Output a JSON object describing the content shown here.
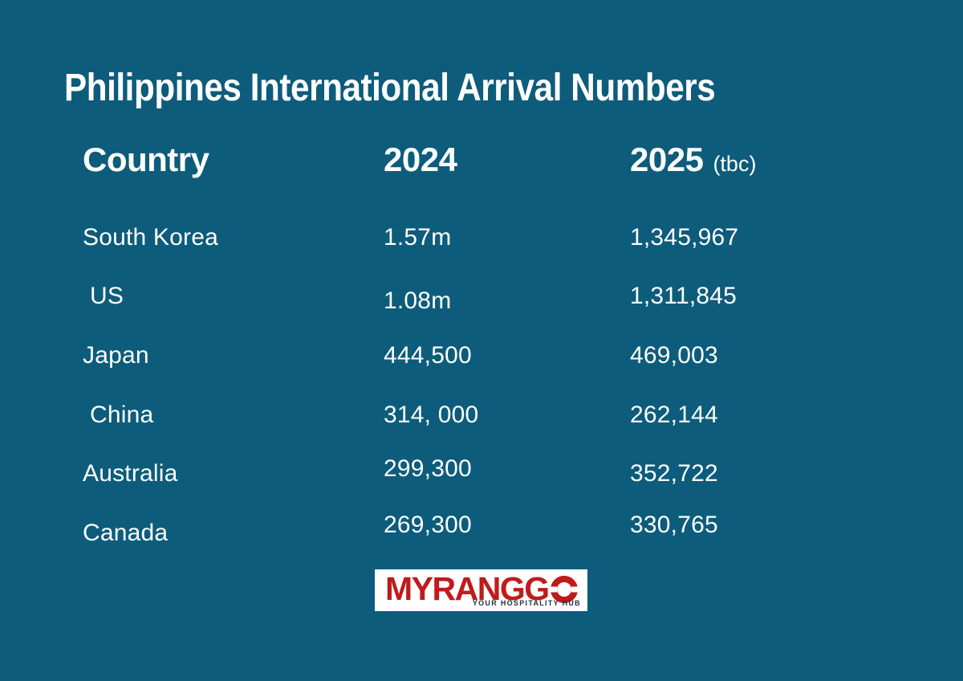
{
  "page": {
    "title": "Philippines International Arrival Numbers",
    "background_color": "#0d5c7b",
    "text_color": "#ffffff"
  },
  "table": {
    "headers": {
      "country": "Country",
      "y2024": "2024",
      "y2025": "2025",
      "y2025_note": "(tbc)"
    }
  },
  "chart_data": {
    "type": "table",
    "title": "Philippines International Arrival Numbers",
    "columns": [
      "Country",
      "2024",
      "2025 (tbc)"
    ],
    "rows": [
      [
        "South Korea",
        "1.57m",
        "1,345,967"
      ],
      [
        "US",
        "1.08m",
        "1,311,845"
      ],
      [
        "Japan",
        "444,500",
        "469,003"
      ],
      [
        "China",
        "314, 000",
        "262,144"
      ],
      [
        "Australia",
        "299,300",
        "352,722"
      ],
      [
        "Canada",
        "269,300",
        "330,765"
      ]
    ],
    "values_2024_numeric": [
      1570000,
      1080000,
      444500,
      314000,
      299300,
      269300
    ],
    "values_2025_numeric": [
      1345967,
      1311845,
      469003,
      262144,
      352722,
      330765
    ]
  },
  "logo": {
    "wordmark_prefix": "MYRANGG",
    "wordmark_last": "O",
    "tagline": "YOUR HOSPITALITY HUB",
    "wordmark_color": "#c01b1b",
    "tagline_color": "#24313f",
    "background_color": "#ffffff"
  }
}
